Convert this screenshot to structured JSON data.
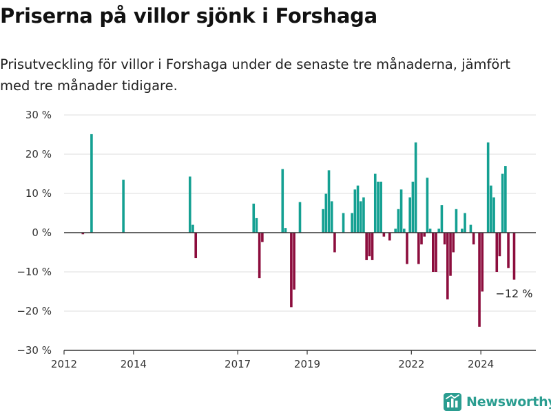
{
  "title": "Priserna på villor sjönk i Forshaga",
  "subtitle": "Prisutveckling för villor i Forshaga under de senaste tre månaderna, jämfört med tre månader tidigare.",
  "brand": {
    "name": "Newsworthy",
    "icon": "newsworthy-logo-icon",
    "color": "#2a9d90"
  },
  "chart_data": {
    "type": "bar",
    "x_axis": {
      "type": "date",
      "range": [
        "2012-01",
        "2025-08"
      ],
      "ticks": [
        {
          "value": "2012-01",
          "label": "2012"
        },
        {
          "value": "2014-01",
          "label": "2014"
        },
        {
          "value": "2017-01",
          "label": "2017"
        },
        {
          "value": "2019-01",
          "label": "2019"
        },
        {
          "value": "2022-01",
          "label": "2022"
        },
        {
          "value": "2024-01",
          "label": "2024"
        }
      ]
    },
    "y_axis": {
      "range": [
        -30,
        30
      ],
      "ticks": [
        30,
        20,
        10,
        0,
        -10,
        -20,
        -30
      ],
      "tick_labels": [
        "30 %",
        "20 %",
        "10 %",
        "0 %",
        "−10 %",
        "−20 %",
        "−30 %"
      ]
    },
    "grid": "horizontal",
    "colors": {
      "positive": "#14a092",
      "negative": "#8c0d3d"
    },
    "annotation": {
      "date": "2024-12",
      "text": "−12 %"
    },
    "series": [
      {
        "points": [
          {
            "date": "2012-07",
            "value": -0.4
          },
          {
            "date": "2012-10",
            "value": 25.1
          },
          {
            "date": "2013-09",
            "value": 13.5
          },
          {
            "date": "2015-08",
            "value": 14.3
          },
          {
            "date": "2015-09",
            "value": 2.0
          },
          {
            "date": "2015-10",
            "value": -6.5
          },
          {
            "date": "2017-06",
            "value": 7.4
          },
          {
            "date": "2017-07",
            "value": 3.7
          },
          {
            "date": "2017-08",
            "value": -11.6
          },
          {
            "date": "2017-09",
            "value": -2.4
          },
          {
            "date": "2018-04",
            "value": 16.2
          },
          {
            "date": "2018-05",
            "value": 1.2
          },
          {
            "date": "2018-07",
            "value": -19.0
          },
          {
            "date": "2018-08",
            "value": -14.5
          },
          {
            "date": "2018-10",
            "value": 7.8
          },
          {
            "date": "2019-06",
            "value": 6.0
          },
          {
            "date": "2019-07",
            "value": 9.9
          },
          {
            "date": "2019-08",
            "value": 15.9
          },
          {
            "date": "2019-09",
            "value": 8.0
          },
          {
            "date": "2019-10",
            "value": -5.0
          },
          {
            "date": "2020-01",
            "value": 5.0
          },
          {
            "date": "2020-04",
            "value": 5.0
          },
          {
            "date": "2020-05",
            "value": 11.0
          },
          {
            "date": "2020-06",
            "value": 12.0
          },
          {
            "date": "2020-07",
            "value": 8.0
          },
          {
            "date": "2020-08",
            "value": 9.0
          },
          {
            "date": "2020-09",
            "value": -7.0
          },
          {
            "date": "2020-10",
            "value": -6.0
          },
          {
            "date": "2020-11",
            "value": -7.0
          },
          {
            "date": "2020-12",
            "value": 15.0
          },
          {
            "date": "2021-01",
            "value": 13.0
          },
          {
            "date": "2021-02",
            "value": 13.0
          },
          {
            "date": "2021-03",
            "value": -1.0
          },
          {
            "date": "2021-05",
            "value": -2.0
          },
          {
            "date": "2021-07",
            "value": 1.0
          },
          {
            "date": "2021-08",
            "value": 6.0
          },
          {
            "date": "2021-09",
            "value": 11.0
          },
          {
            "date": "2021-10",
            "value": 1.0
          },
          {
            "date": "2021-11",
            "value": -8.0
          },
          {
            "date": "2021-12",
            "value": 9.0
          },
          {
            "date": "2022-01",
            "value": 13.0
          },
          {
            "date": "2022-02",
            "value": 23.0
          },
          {
            "date": "2022-03",
            "value": -8.0
          },
          {
            "date": "2022-04",
            "value": -3.0
          },
          {
            "date": "2022-05",
            "value": -1.0
          },
          {
            "date": "2022-06",
            "value": 14.0
          },
          {
            "date": "2022-07",
            "value": 1.0
          },
          {
            "date": "2022-08",
            "value": -10.0
          },
          {
            "date": "2022-09",
            "value": -10.0
          },
          {
            "date": "2022-10",
            "value": 1.0
          },
          {
            "date": "2022-11",
            "value": 7.0
          },
          {
            "date": "2022-12",
            "value": -3.0
          },
          {
            "date": "2023-01",
            "value": -17.0
          },
          {
            "date": "2023-02",
            "value": -11.0
          },
          {
            "date": "2023-03",
            "value": -5.0
          },
          {
            "date": "2023-04",
            "value": 6.0
          },
          {
            "date": "2023-06",
            "value": 1.0
          },
          {
            "date": "2023-07",
            "value": 5.0
          },
          {
            "date": "2023-09",
            "value": 2.0
          },
          {
            "date": "2023-10",
            "value": -3.0
          },
          {
            "date": "2023-12",
            "value": -24.0
          },
          {
            "date": "2024-01",
            "value": -15.0
          },
          {
            "date": "2024-03",
            "value": 23.0
          },
          {
            "date": "2024-04",
            "value": 12.0
          },
          {
            "date": "2024-05",
            "value": 9.0
          },
          {
            "date": "2024-06",
            "value": -10.0
          },
          {
            "date": "2024-07",
            "value": -6.0
          },
          {
            "date": "2024-08",
            "value": 15.0
          },
          {
            "date": "2024-09",
            "value": 17.0
          },
          {
            "date": "2024-10",
            "value": -9.0
          },
          {
            "date": "2024-12",
            "value": -12.0
          }
        ]
      }
    ]
  }
}
